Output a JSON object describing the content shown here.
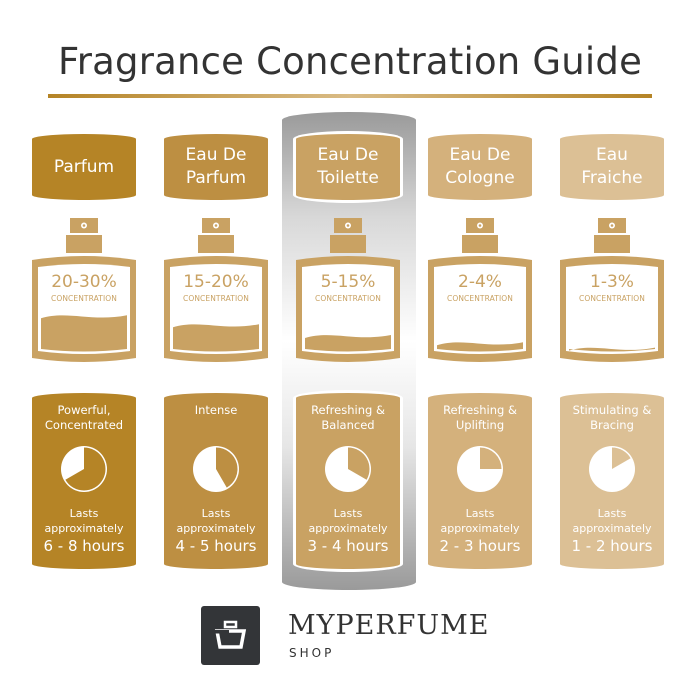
{
  "title": "Fragrance Concentration Guide",
  "colors": {
    "title": "#333333",
    "accent": "#b58426",
    "highlight": "#a0a0a0",
    "logo": "#333538"
  },
  "highlighted_index": 2,
  "columns": [
    {
      "name_lines": [
        "Parfum"
      ],
      "concentration": "20-30%",
      "concentration_label": "CONCENTRATION",
      "fill_level": 0.42,
      "description_lines": [
        "Powerful,",
        "Concentrated"
      ],
      "lasts": [
        "Lasts",
        "approximately"
      ],
      "hours": "6 - 8 hours",
      "clock_hours": 8,
      "color": "#b58426",
      "icon": "perfume-bottle-icon"
    },
    {
      "name_lines": [
        "Eau De",
        "Parfum"
      ],
      "concentration": "15-20%",
      "concentration_label": "CONCENTRATION",
      "fill_level": 0.32,
      "description_lines": [
        "Intense"
      ],
      "lasts": [
        "Lasts",
        "approximately"
      ],
      "hours": "4 - 5 hours",
      "clock_hours": 5,
      "color": "#bd8f42",
      "icon": "perfume-bottle-icon"
    },
    {
      "name_lines": [
        "Eau De",
        "Toilette"
      ],
      "concentration": "5-15%",
      "concentration_label": "CONCENTRATION",
      "fill_level": 0.2,
      "description_lines": [
        "Refreshing &",
        "Balanced"
      ],
      "lasts": [
        "Lasts",
        "approximately"
      ],
      "hours": "3 - 4 hours",
      "clock_hours": 4,
      "color": "#c9a263",
      "icon": "perfume-bottle-icon"
    },
    {
      "name_lines": [
        "Eau De",
        "Cologne"
      ],
      "concentration": "2-4%",
      "concentration_label": "CONCENTRATION",
      "fill_level": 0.12,
      "description_lines": [
        "Refreshing &",
        "Uplifting"
      ],
      "lasts": [
        "Lasts",
        "approximately"
      ],
      "hours": "2 - 3 hours",
      "clock_hours": 3,
      "color": "#d4b17c",
      "icon": "perfume-bottle-icon"
    },
    {
      "name_lines": [
        "Eau",
        "Fraiche"
      ],
      "concentration": "1-3%",
      "concentration_label": "CONCENTRATION",
      "fill_level": 0.06,
      "description_lines": [
        "Stimulating &",
        "Bracing"
      ],
      "lasts": [
        "Lasts",
        "approximately"
      ],
      "hours": "1 - 2 hours",
      "clock_hours": 2,
      "color": "#dcc095",
      "icon": "perfume-bottle-icon"
    }
  ],
  "logo": {
    "brand": "MYPERFUME",
    "sub": "SHOP",
    "icon": "perfume-basket-icon"
  }
}
